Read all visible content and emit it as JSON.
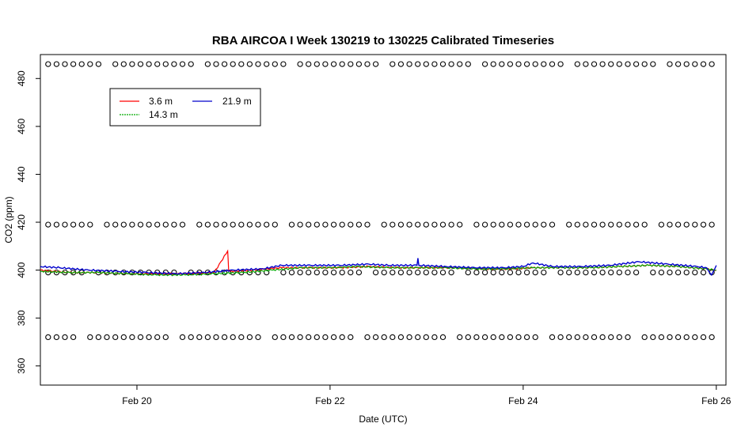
{
  "chart_data": {
    "type": "line",
    "title": "RBA AIRCOA I  Week 130219 to 130225  Calibrated Timeseries",
    "xlabel": "Date (UTC)",
    "ylabel": "CO2 (ppm)",
    "xlim": [
      19.0,
      26.1
    ],
    "ylim": [
      352,
      490
    ],
    "x_ticks": [
      {
        "x": 20,
        "label": "Feb 20"
      },
      {
        "x": 22,
        "label": "Feb 22"
      },
      {
        "x": 24,
        "label": "Feb 24"
      },
      {
        "x": 26,
        "label": "Feb 26"
      }
    ],
    "y_ticks": [
      {
        "y": 360,
        "label": "360"
      },
      {
        "y": 380,
        "label": "380"
      },
      {
        "y": 400,
        "label": "400"
      },
      {
        "y": 420,
        "label": "420"
      },
      {
        "y": 440,
        "label": "440"
      },
      {
        "y": 460,
        "label": "460"
      },
      {
        "y": 480,
        "label": "480"
      }
    ],
    "legend": {
      "placement": "top-left",
      "entries": [
        {
          "name": "3.6 m",
          "color": "#ff0000"
        },
        {
          "name": "21.9 m",
          "color": "#0000cc"
        },
        {
          "name": "14.3 m",
          "color": "#00aa00"
        }
      ]
    },
    "series": [
      {
        "name": "3.6 m",
        "color": "#ff0000",
        "x": [
          19.0,
          19.3,
          19.6,
          19.9,
          20.2,
          20.5,
          20.8,
          20.94,
          20.95,
          20.96,
          21.2,
          21.5,
          21.8,
          22.1,
          22.4,
          22.7,
          23.0,
          23.3,
          23.6,
          23.9,
          24.1,
          24.4,
          24.7,
          25.0,
          25.3,
          25.6,
          25.9,
          26.0
        ],
        "y": [
          400,
          399,
          399,
          398.5,
          398.5,
          398.5,
          399,
          408,
          400,
          399.5,
          400,
          401,
          401,
          401,
          401.5,
          401,
          401,
          401,
          400.5,
          400.5,
          401,
          401,
          401,
          401.5,
          402,
          401.5,
          400.5,
          400
        ]
      },
      {
        "name": "14.3 m",
        "color": "#00aa00",
        "x": [
          19.0,
          19.3,
          19.6,
          19.9,
          20.2,
          20.5,
          20.8,
          21.1,
          21.4,
          21.7,
          22.0,
          22.3,
          22.6,
          22.9,
          23.2,
          23.5,
          23.8,
          24.1,
          24.4,
          24.7,
          25.0,
          25.3,
          25.6,
          25.9,
          26.0
        ],
        "y": [
          399.5,
          399,
          399,
          398.5,
          398,
          398,
          398.5,
          399,
          400,
          401,
          401,
          401.5,
          401,
          401,
          401,
          400.5,
          400.5,
          401,
          401,
          401,
          401.5,
          402,
          401.5,
          400.5,
          400
        ]
      },
      {
        "name": "21.9 m",
        "color": "#0000cc",
        "x": [
          19.0,
          19.2,
          19.5,
          19.8,
          20.1,
          20.4,
          20.7,
          21.0,
          21.3,
          21.5,
          21.8,
          22.1,
          22.4,
          22.6,
          22.9,
          22.91,
          22.92,
          23.2,
          23.5,
          23.8,
          24.0,
          24.1,
          24.3,
          24.6,
          24.9,
          25.2,
          25.5,
          25.8,
          25.9,
          25.95,
          26.0
        ],
        "y": [
          401.5,
          401,
          400,
          399.5,
          399,
          398.5,
          399,
          400,
          400.5,
          402,
          402,
          402,
          402.5,
          402,
          402,
          405,
          402,
          401.5,
          401,
          401,
          401.5,
          403,
          401.5,
          401.5,
          402,
          403.5,
          402.5,
          401.5,
          401,
          398,
          402
        ]
      }
    ],
    "calibration_rows": [
      {
        "y": 486,
        "x_start": 19.08,
        "x_end": 26.0,
        "step": 0.087
      },
      {
        "y": 419,
        "x_start": 19.08,
        "x_end": 26.0,
        "step": 0.087
      },
      {
        "y": 399,
        "x_start": 19.08,
        "x_end": 26.0,
        "step": 0.087
      },
      {
        "y": 372,
        "x_start": 19.08,
        "x_end": 26.0,
        "step": 0.087
      }
    ]
  }
}
